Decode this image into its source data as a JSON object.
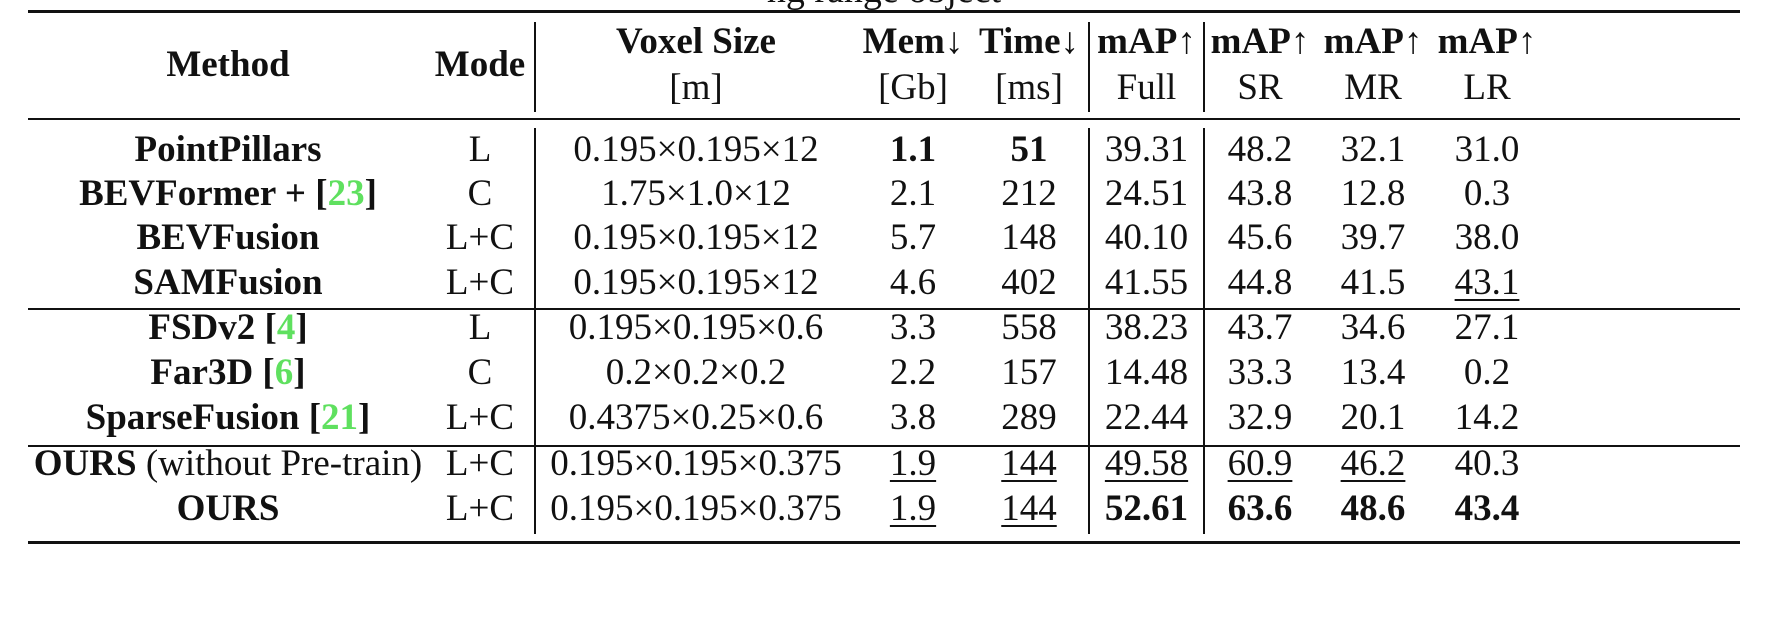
{
  "caption_tail": "ng range object",
  "header": {
    "method": "Method",
    "mode": "Mode",
    "voxel": {
      "top": "Voxel Size",
      "unit": "[m]"
    },
    "mem": {
      "top": "Mem↓",
      "unit": "[Gb]"
    },
    "time": {
      "top": "Time↓",
      "unit": "[ms]"
    },
    "full": {
      "top": "mAP↑",
      "unit": "Full"
    },
    "sr": {
      "top": "mAP↑",
      "unit": "SR"
    },
    "mr": {
      "top": "mAP↑",
      "unit": "MR"
    },
    "lr": {
      "top": "mAP↑",
      "unit": "LR"
    }
  },
  "rows": [
    {
      "method": "PointPillars",
      "ref": "",
      "note": "",
      "mode": "L",
      "voxel": "0.195×0.195×12",
      "mem": "1.1",
      "time": "51",
      "full": "39.31",
      "sr": "48.2",
      "mr": "32.1",
      "lr": "31.0"
    },
    {
      "method": "BEVFormer + ",
      "ref": "23",
      "note": "",
      "mode": "C",
      "voxel": "1.75×1.0×12",
      "mem": "2.1",
      "time": "212",
      "full": "24.51",
      "sr": "43.8",
      "mr": "12.8",
      "lr": "0.3"
    },
    {
      "method": "BEVFusion",
      "ref": "",
      "note": "",
      "mode": "L+C",
      "voxel": "0.195×0.195×12",
      "mem": "5.7",
      "time": "148",
      "full": "40.10",
      "sr": "45.6",
      "mr": "39.7",
      "lr": "38.0"
    },
    {
      "method": "SAMFusion",
      "ref": "",
      "note": "",
      "mode": "L+C",
      "voxel": "0.195×0.195×12",
      "mem": "4.6",
      "time": "402",
      "full": "41.55",
      "sr": "44.8",
      "mr": "41.5",
      "lr": "43.1"
    },
    {
      "method": "FSDv2 ",
      "ref": "4",
      "note": "",
      "mode": "L",
      "voxel": "0.195×0.195×0.6",
      "mem": "3.3",
      "time": "558",
      "full": "38.23",
      "sr": "43.7",
      "mr": "34.6",
      "lr": "27.1"
    },
    {
      "method": "Far3D ",
      "ref": "6",
      "note": "",
      "mode": "C",
      "voxel": "0.2×0.2×0.2",
      "mem": "2.2",
      "time": "157",
      "full": "14.48",
      "sr": "33.3",
      "mr": "13.4",
      "lr": "0.2"
    },
    {
      "method": "SparseFusion ",
      "ref": "21",
      "note": "",
      "mode": "L+C",
      "voxel": "0.4375×0.25×0.6",
      "mem": "3.8",
      "time": "289",
      "full": "22.44",
      "sr": "32.9",
      "mr": "20.1",
      "lr": "14.2"
    },
    {
      "method": "OURS",
      "ref": "",
      "note": " (without Pre-train)",
      "mode": "L+C",
      "voxel": "0.195×0.195×0.375",
      "mem": "1.9",
      "time": "144",
      "full": "49.58",
      "sr": "60.9",
      "mr": "46.2",
      "lr": "40.3"
    },
    {
      "method": "OURS",
      "ref": "",
      "note": "",
      "mode": "L+C",
      "voxel": "0.195×0.195×0.375",
      "mem": "1.9",
      "time": "144",
      "full": "52.61",
      "sr": "63.6",
      "mr": "48.6",
      "lr": "43.4"
    }
  ]
}
